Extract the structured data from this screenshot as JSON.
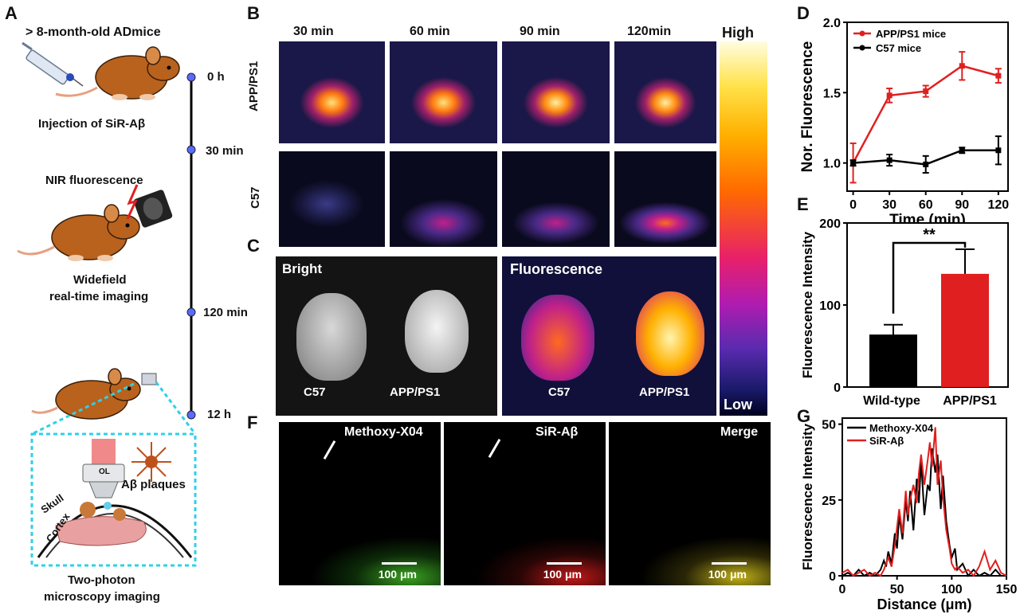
{
  "panel_labels": {
    "a": "A",
    "b": "B",
    "c": "C",
    "d": "D",
    "e": "E",
    "f": "F",
    "g": "G"
  },
  "panel_a": {
    "title": "> 8-month-old ADmice",
    "injection": "Injection of SiR-Aβ",
    "nir": "NIR fluorescence",
    "widefield_1": "Widefield",
    "widefield_2": "real-time imaging",
    "timepoints": [
      "0 h",
      "30 min",
      "120 min",
      "12 h"
    ],
    "ol_label": "OL",
    "plaques": "Aβ plaques",
    "skull": "Skull",
    "cortex": "Cortex",
    "twophoton_1": "Two-photon",
    "twophoton_2": "microscopy imaging"
  },
  "panel_b": {
    "times": [
      "30 min",
      "60 min",
      "90 min",
      "120min"
    ],
    "row_labels": [
      "APP/PS1",
      "C57"
    ],
    "colorbar_high": "High",
    "colorbar_low": "Low"
  },
  "panel_c": {
    "bright": "Bright",
    "fluorescence": "Fluorescence",
    "labels": [
      "C57",
      "APP/PS1",
      "C57",
      "APP/PS1"
    ]
  },
  "panel_f": {
    "channels": [
      "Methoxy-X04",
      "SiR-Aβ",
      "Merge"
    ],
    "scale": "100 μm"
  },
  "chart_data": [
    {
      "id": "D",
      "type": "line",
      "x": [
        0,
        30,
        60,
        90,
        120
      ],
      "xlabel": "Time (min)",
      "ylabel": "Nor. Fluorescence",
      "xlim": [
        -5,
        128
      ],
      "ylim": [
        0.8,
        2.0
      ],
      "yticks": [
        1.0,
        1.5,
        2.0
      ],
      "xticks": [
        0,
        30,
        60,
        90,
        120
      ],
      "legend": "top-left",
      "series": [
        {
          "name": "APP/PS1 mice",
          "color": "#e02020",
          "values": [
            1.0,
            1.48,
            1.51,
            1.69,
            1.62
          ],
          "errors": [
            0.14,
            0.05,
            0.04,
            0.1,
            0.05
          ]
        },
        {
          "name": "C57 mice",
          "color": "#000000",
          "values": [
            1.0,
            1.02,
            0.99,
            1.09,
            1.09
          ],
          "errors": [
            0.02,
            0.04,
            0.06,
            0.02,
            0.1
          ]
        }
      ]
    },
    {
      "id": "E",
      "type": "bar",
      "categories": [
        "Wild-type",
        "APP/PS1"
      ],
      "values": [
        64,
        138
      ],
      "errors": [
        12,
        30
      ],
      "colors": [
        "#000000",
        "#e02020"
      ],
      "ylabel": "Fluorescence Intensity",
      "ylim": [
        0,
        200
      ],
      "yticks": [
        0,
        100,
        200
      ],
      "annotation": "**"
    },
    {
      "id": "G",
      "type": "line",
      "xlabel": "Distance (μm)",
      "ylabel": "Fluorescence Intensity",
      "xlim": [
        0,
        150
      ],
      "ylim": [
        0,
        52
      ],
      "xticks": [
        0,
        50,
        100,
        150
      ],
      "yticks": [
        0,
        25,
        50
      ],
      "legend": "top-left",
      "series": [
        {
          "name": "Methoxy-X04",
          "color": "#000000",
          "x": [
            0,
            5,
            10,
            15,
            20,
            25,
            30,
            35,
            38,
            40,
            42,
            45,
            48,
            50,
            52,
            55,
            58,
            60,
            62,
            65,
            68,
            70,
            72,
            75,
            78,
            80,
            82,
            85,
            87,
            90,
            92,
            95,
            98,
            100,
            103,
            105,
            110,
            115,
            120,
            125,
            130,
            135,
            140,
            145,
            150
          ],
          "y": [
            0,
            1,
            0,
            2,
            0,
            1,
            0,
            2,
            5,
            3,
            8,
            4,
            14,
            9,
            20,
            12,
            25,
            18,
            28,
            15,
            32,
            24,
            38,
            20,
            30,
            28,
            42,
            34,
            40,
            22,
            33,
            18,
            10,
            6,
            9,
            2,
            4,
            0,
            2,
            0,
            1,
            0,
            2,
            0,
            0
          ]
        },
        {
          "name": "SiR-Aβ",
          "color": "#e02020",
          "x": [
            0,
            5,
            10,
            15,
            20,
            25,
            30,
            35,
            38,
            40,
            42,
            45,
            48,
            50,
            52,
            55,
            58,
            60,
            62,
            65,
            68,
            70,
            72,
            75,
            78,
            80,
            82,
            85,
            87,
            90,
            92,
            95,
            98,
            100,
            103,
            105,
            110,
            115,
            120,
            125,
            130,
            135,
            140,
            145,
            150
          ],
          "y": [
            1,
            2,
            0,
            1,
            2,
            0,
            1,
            0,
            2,
            4,
            6,
            3,
            10,
            16,
            22,
            14,
            28,
            20,
            25,
            30,
            24,
            34,
            40,
            30,
            38,
            44,
            36,
            49,
            30,
            38,
            26,
            15,
            9,
            4,
            2,
            3,
            1,
            2,
            0,
            3,
            8,
            2,
            5,
            1,
            0
          ]
        }
      ]
    }
  ]
}
